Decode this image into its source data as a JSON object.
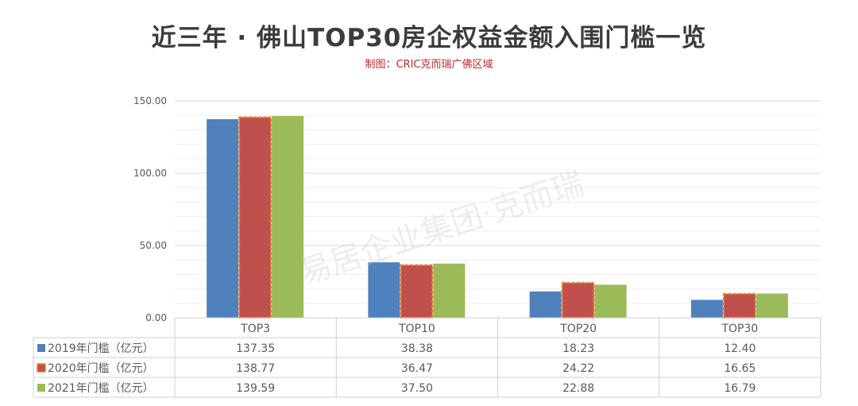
{
  "title": "近三年 · 佛山TOP30房企权益金额入围门槛一览",
  "subtitle": "制图：CRIC克而瑞广佛区域",
  "watermark": "易居企业集团·克而瑞",
  "colors": {
    "series_2019": "#4f81bd",
    "series_2020": "#c0504d",
    "series_2020_border": "#e4872f",
    "series_2021": "#9bbb59",
    "grid": "#e3e3e3",
    "axis_text": "#595959",
    "title_text": "#3c3c3c",
    "subtitle_text": "#c0282b"
  },
  "chart_data": {
    "type": "bar",
    "categories": [
      "TOP3",
      "TOP10",
      "TOP20",
      "TOP30"
    ],
    "series": [
      {
        "name": "2019年门槛（亿元）",
        "values": [
          137.35,
          38.38,
          18.23,
          12.4
        ]
      },
      {
        "name": "2020年门槛（亿元）",
        "values": [
          138.77,
          36.47,
          24.22,
          16.65
        ]
      },
      {
        "name": "2021年门槛（亿元）",
        "values": [
          139.59,
          37.5,
          22.88,
          16.79
        ]
      }
    ],
    "yticks": [
      "0.00",
      "50.00",
      "100.00",
      "150.00"
    ],
    "ylim": [
      0,
      150
    ],
    "grid": true,
    "data_table": true
  }
}
